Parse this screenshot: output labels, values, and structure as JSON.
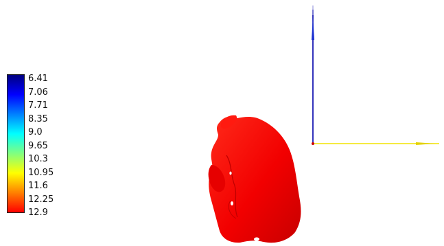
{
  "viewer": {
    "background": "#ffffff",
    "surface_color": "#ff0000"
  },
  "colorbar": {
    "labels": [
      "6.41",
      "7.06",
      "7.71",
      "8.35",
      "9.0",
      "9.65",
      "10.3",
      "10.95",
      "11.6",
      "12.25",
      "12.9"
    ],
    "min_value": 6.41,
    "max_value": 12.9,
    "colormap": [
      "#00007f",
      "#0000ff",
      "#0080ff",
      "#00ffff",
      "#80ff80",
      "#ffff00",
      "#ff8000",
      "#ff0000"
    ]
  },
  "axes": {
    "vertical_axis_color": "#0000aa",
    "horizontal_axis_color": "#ffee00",
    "origin_color": "#cc0000"
  }
}
